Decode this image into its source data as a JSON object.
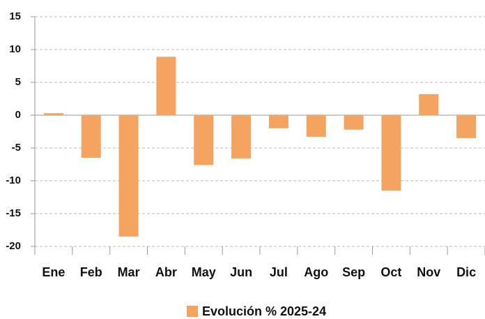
{
  "chart_data": {
    "type": "bar",
    "categories": [
      "Ene",
      "Feb",
      "Mar",
      "Abr",
      "May",
      "Jun",
      "Jul",
      "Ago",
      "Sep",
      "Oct",
      "Nov",
      "Dic"
    ],
    "series": [
      {
        "name": "Evolución % 2025-24",
        "color": "#f4a460",
        "values": [
          0.3,
          -6.5,
          -18.5,
          8.9,
          -7.6,
          -6.6,
          -2.0,
          -3.3,
          -2.2,
          -11.5,
          3.2,
          -3.5
        ]
      }
    ],
    "ylim": [
      -20,
      15
    ],
    "yticks": [
      -20,
      -15,
      -10,
      -5,
      0,
      5,
      10,
      15
    ],
    "grid": true,
    "legend": "bottom"
  }
}
